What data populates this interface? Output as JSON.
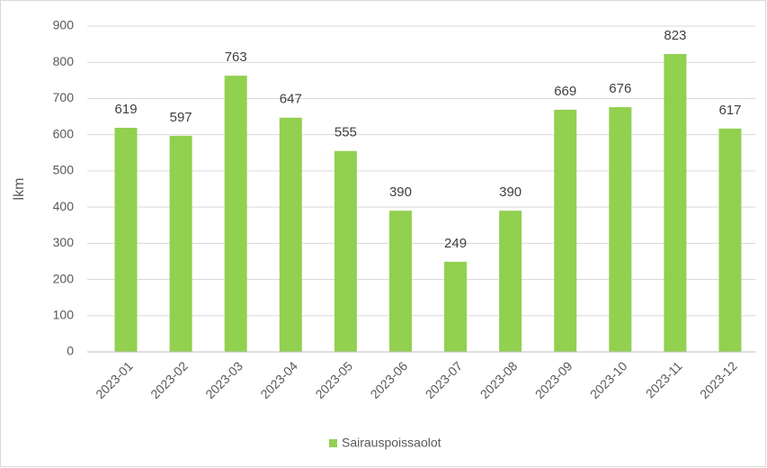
{
  "chart_data": {
    "type": "bar",
    "y_label": "lkm",
    "categories": [
      "2023-01",
      "2023-02",
      "2023-03",
      "2023-04",
      "2023-05",
      "2023-06",
      "2023-07",
      "2023-08",
      "2023-09",
      "2023-10",
      "2023-11",
      "2023-12"
    ],
    "series": [
      {
        "name": "Sairauspoissaolot",
        "color": "#92d050",
        "values": [
          619,
          597,
          763,
          647,
          555,
          390,
          249,
          390,
          669,
          676,
          823,
          617
        ]
      }
    ],
    "ylim": [
      0,
      900
    ],
    "yticks": [
      0,
      100,
      200,
      300,
      400,
      500,
      600,
      700,
      800,
      900
    ],
    "grid": true,
    "legend": "bottom"
  }
}
